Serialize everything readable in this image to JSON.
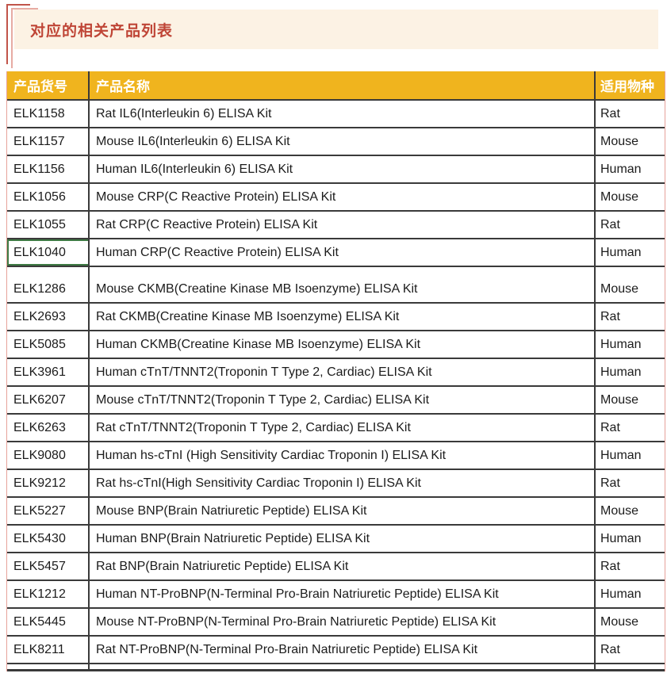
{
  "banner": {
    "title": "对应的相关产品列表",
    "title_color": "#bf4536",
    "background": "#fcf2e4"
  },
  "table": {
    "header": {
      "col_code": "产品货号",
      "col_name": "产品名称",
      "col_species": "适用物种"
    },
    "header_bg": "#f0b41e",
    "header_text_color": "#ffffff",
    "grid_color": "#3a3a3a",
    "outer_border_color": "#e6a29a",
    "rows": [
      {
        "code": "ELK1158",
        "name": "Rat IL6(Interleukin 6) ELISA Kit",
        "species": "Rat"
      },
      {
        "code": "ELK1157",
        "name": "Mouse IL6(Interleukin 6) ELISA Kit",
        "species": "Mouse"
      },
      {
        "code": "ELK1156",
        "name": "Human IL6(Interleukin 6) ELISA Kit",
        "species": "Human"
      },
      {
        "code": "ELK1056",
        "name": "Mouse CRP(C Reactive Protein) ELISA Kit",
        "species": "Mouse"
      },
      {
        "code": "ELK1055",
        "name": "Rat CRP(C Reactive Protein) ELISA Kit",
        "species": "Rat"
      },
      {
        "code": "ELK1040",
        "name": "Human CRP(C Reactive Protein) ELISA Kit",
        "species": "Human",
        "selected": true
      },
      {
        "code": "ELK1286",
        "name": "Mouse CKMB(Creatine Kinase MB Isoenzyme) ELISA Kit",
        "species": "Mouse",
        "gap_before": true
      },
      {
        "code": "ELK2693",
        "name": "Rat CKMB(Creatine Kinase MB Isoenzyme) ELISA Kit",
        "species": "Rat"
      },
      {
        "code": "ELK5085",
        "name": "Human CKMB(Creatine Kinase MB Isoenzyme) ELISA Kit",
        "species": "Human"
      },
      {
        "code": "ELK3961",
        "name": "Human cTnT/TNNT2(Troponin T Type 2, Cardiac) ELISA Kit",
        "species": "Human"
      },
      {
        "code": "ELK6207",
        "name": "Mouse cTnT/TNNT2(Troponin T Type 2, Cardiac) ELISA Kit",
        "species": "Mouse"
      },
      {
        "code": "ELK6263",
        "name": "Rat cTnT/TNNT2(Troponin T Type 2, Cardiac) ELISA Kit",
        "species": "Rat"
      },
      {
        "code": "ELK9080",
        "name": "Human hs-cTnI (High Sensitivity Cardiac Troponin I) ELISA Kit",
        "species": "Human"
      },
      {
        "code": "ELK9212",
        "name": "Rat hs-cTnI(High Sensitivity Cardiac Troponin I) ELISA Kit",
        "species": "Rat"
      },
      {
        "code": "ELK5227",
        "name": "Mouse BNP(Brain Natriuretic Peptide) ELISA Kit",
        "species": "Mouse"
      },
      {
        "code": "ELK5430",
        "name": "Human BNP(Brain Natriuretic Peptide) ELISA Kit",
        "species": "Human"
      },
      {
        "code": "ELK5457",
        "name": "Rat BNP(Brain Natriuretic Peptide) ELISA Kit",
        "species": "Rat"
      },
      {
        "code": "ELK1212",
        "name": "Human NT-ProBNP(N-Terminal Pro-Brain Natriuretic Peptide) ELISA Kit",
        "species": "Human"
      },
      {
        "code": "ELK5445",
        "name": "Mouse NT-ProBNP(N-Terminal Pro-Brain Natriuretic Peptide) ELISA Kit",
        "species": "Mouse"
      },
      {
        "code": "ELK8211",
        "name": "Rat NT-ProBNP(N-Terminal Pro-Brain Natriuretic Peptide) ELISA Kit",
        "species": "Rat"
      }
    ]
  }
}
